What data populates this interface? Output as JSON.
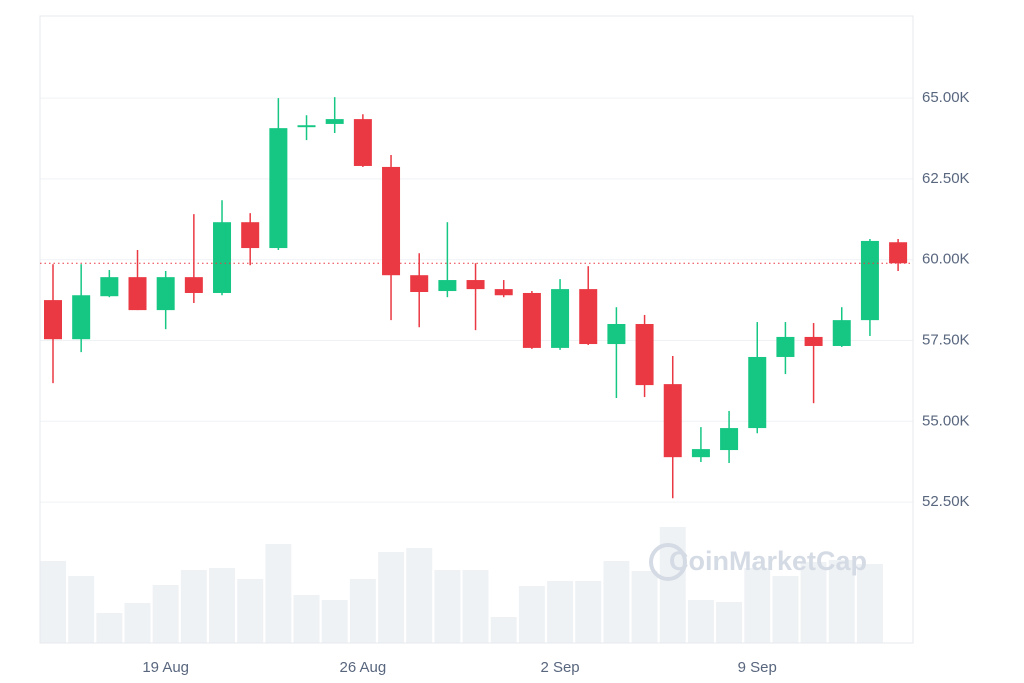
{
  "chart_data": {
    "type": "candlestick",
    "watermark": "CoinMarketCap",
    "categories": [
      null,
      null,
      null,
      null,
      "19 Aug",
      null,
      null,
      null,
      null,
      null,
      null,
      "26 Aug",
      null,
      null,
      null,
      null,
      null,
      null,
      "2 Sep",
      null,
      null,
      null,
      null,
      null,
      null,
      "9 Sep",
      null,
      null,
      null,
      null,
      null
    ],
    "open": [
      58750,
      57540,
      58870,
      59460,
      58440,
      59460,
      58970,
      61160,
      60360,
      64100,
      64200,
      64350,
      62870,
      59520,
      59030,
      59370,
      59090,
      58970,
      57270,
      59090,
      57390,
      58010,
      56150,
      53890,
      54110,
      54790,
      56990,
      57610,
      57330,
      58130,
      60540
    ],
    "high": [
      59860,
      59860,
      59680,
      60300,
      59650,
      61410,
      61840,
      61440,
      65000,
      64470,
      65030,
      64500,
      63240,
      60200,
      61160,
      59890,
      59370,
      59030,
      59400,
      59800,
      58530,
      58290,
      57020,
      54820,
      55320,
      58070,
      58070,
      58040,
      58530,
      60640,
      60640
    ],
    "low": [
      56180,
      57140,
      58840,
      58440,
      57850,
      58660,
      58900,
      59830,
      60300,
      63700,
      63920,
      62870,
      58130,
      57910,
      58840,
      57820,
      58840,
      57240,
      57210,
      57360,
      55720,
      55750,
      52620,
      53740,
      53710,
      54630,
      56460,
      55560,
      57300,
      57640,
      59650
    ],
    "close": [
      57540,
      58900,
      59460,
      58440,
      59460,
      58970,
      61160,
      60360,
      64070,
      64160,
      64350,
      62900,
      59520,
      59000,
      59370,
      59090,
      58900,
      57270,
      59090,
      57390,
      58010,
      56120,
      53890,
      54140,
      54790,
      56990,
      57610,
      57330,
      58130,
      60580,
      59890
    ],
    "volume": [
      82,
      67,
      30,
      40,
      58,
      73,
      75,
      64,
      99,
      48,
      43,
      64,
      91,
      95,
      73,
      73,
      26,
      57,
      62,
      62,
      82,
      72,
      116,
      43,
      41,
      75,
      67,
      81,
      83,
      79,
      null
    ],
    "up_color": "#16c784",
    "down_color": "#ea3943",
    "volume_color": "#eff2f5",
    "last_price": 59890,
    "ylim": [
      48140,
      67540
    ],
    "yticks": [
      {
        "value": 52500,
        "label": "52.50K"
      },
      {
        "value": 55000,
        "label": "55.00K"
      },
      {
        "value": 57500,
        "label": "57.50K"
      },
      {
        "value": 60000,
        "label": "60.00K"
      },
      {
        "value": 62500,
        "label": "62.50K"
      },
      {
        "value": 65000,
        "label": "65.00K"
      }
    ],
    "y2lim": [
      0,
      627
    ],
    "grid": true
  }
}
